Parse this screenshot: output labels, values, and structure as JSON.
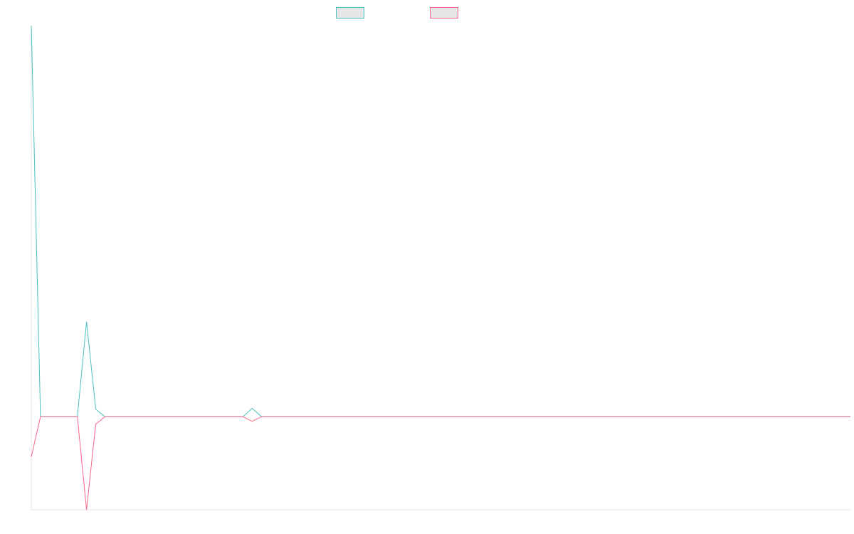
{
  "chart_data": {
    "type": "line",
    "title": "",
    "xlabel": "",
    "ylabel": "",
    "legend": "top-center",
    "grid": false,
    "x": [
      0,
      1,
      2,
      3,
      4,
      5,
      6,
      7,
      8,
      9,
      10,
      11,
      12,
      13,
      14,
      15,
      16,
      17,
      18,
      19,
      20,
      21,
      22,
      23,
      24,
      25,
      26,
      27,
      28,
      29,
      30,
      31,
      32,
      33,
      34,
      35,
      36,
      37,
      38,
      39,
      40,
      41,
      42,
      43,
      44,
      45,
      46,
      47,
      48,
      49,
      50,
      51,
      52,
      53,
      54,
      55,
      56,
      57,
      58,
      59,
      60,
      61,
      62,
      63,
      64,
      65,
      66,
      67,
      68,
      69,
      70,
      71,
      72,
      73,
      74,
      75,
      76,
      77,
      78,
      79,
      80,
      81,
      82,
      83,
      84,
      85,
      86,
      87,
      88,
      89
    ],
    "ylim": [
      -10,
      42
    ],
    "series": [
      {
        "color": "#4bc0c0",
        "values": [
          42,
          0,
          0,
          0,
          0,
          0,
          10.2,
          0.8,
          0,
          0,
          0,
          0,
          0,
          0,
          0,
          0,
          0,
          0,
          0,
          0,
          0,
          0,
          0,
          0,
          0.9,
          0,
          0,
          0,
          0,
          0,
          0,
          0,
          0,
          0,
          0,
          0,
          0,
          0,
          0,
          0,
          0,
          0,
          0,
          0,
          0,
          0,
          0,
          0,
          0,
          0,
          0,
          0,
          0,
          0,
          0,
          0,
          0,
          0,
          0,
          0,
          0,
          0,
          0,
          0,
          0,
          0,
          0,
          0,
          0,
          0,
          0,
          0,
          0,
          0,
          0,
          0,
          0,
          0,
          0,
          0,
          0,
          0,
          0,
          0,
          0,
          0,
          0,
          0,
          0,
          0
        ]
      },
      {
        "color": "#ff6384",
        "values": [
          -4.3,
          0,
          0,
          0,
          0,
          0,
          -10,
          -0.8,
          0,
          0,
          0,
          0,
          0,
          0,
          0,
          0,
          0,
          0,
          0,
          0,
          0,
          0,
          0,
          0,
          -0.5,
          0,
          0,
          0,
          0,
          0,
          0,
          0,
          0,
          0,
          0,
          0,
          0,
          0,
          0,
          0,
          0,
          0,
          0,
          0,
          0,
          0,
          0,
          0,
          0,
          0,
          0,
          0,
          0,
          0,
          0,
          0,
          0,
          0,
          0,
          0,
          0,
          0,
          0,
          0,
          0,
          0,
          0,
          0,
          0,
          0,
          0,
          0,
          0,
          0,
          0,
          0,
          0,
          0,
          0,
          0,
          0,
          0,
          0,
          0,
          0,
          0,
          0,
          0,
          0,
          0
        ]
      }
    ]
  }
}
